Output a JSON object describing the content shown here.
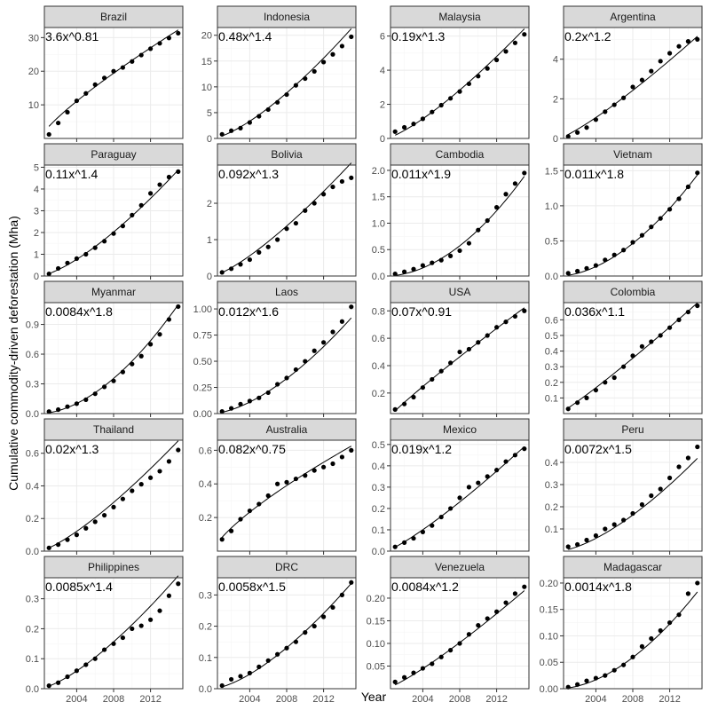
{
  "chart_data": {
    "type": "scatter",
    "layout": "facet-grid 5x4",
    "xlabel": "Year",
    "ylabel": "Cumulative commodity-driven deforestation (Mha)",
    "x_ticks": [
      2004,
      2008,
      2012
    ],
    "xlim": [
      2000.5,
      2015.5
    ],
    "x": [
      2001,
      2002,
      2003,
      2004,
      2005,
      2006,
      2007,
      2008,
      2009,
      2010,
      2011,
      2012,
      2013,
      2014,
      2015
    ],
    "grid": true,
    "panels": [
      {
        "name": "Brazil",
        "equation": "3.6x^0.81",
        "coef": 3.6,
        "exp": 0.81,
        "ylim": [
          0,
          33
        ],
        "yticks": [
          10,
          20,
          30
        ],
        "values": [
          1.2,
          4.6,
          7.8,
          11.2,
          13.4,
          16.0,
          18.0,
          20.0,
          21.1,
          22.9,
          24.8,
          26.7,
          28.3,
          29.9,
          31.3
        ]
      },
      {
        "name": "Indonesia",
        "equation": "0.48x^1.4",
        "coef": 0.48,
        "exp": 1.4,
        "ylim": [
          0,
          21.5
        ],
        "yticks": [
          0,
          5,
          10,
          15,
          20
        ],
        "values": [
          0.8,
          1.5,
          2.0,
          3.1,
          4.3,
          5.6,
          7.0,
          8.5,
          10.3,
          11.6,
          13.0,
          14.8,
          16.3,
          17.9,
          19.7
        ]
      },
      {
        "name": "Malaysia",
        "equation": "0.19x^1.3",
        "coef": 0.19,
        "exp": 1.3,
        "ylim": [
          0,
          6.5
        ],
        "yticks": [
          0,
          2,
          4,
          6
        ],
        "values": [
          0.4,
          0.65,
          0.85,
          1.15,
          1.55,
          1.95,
          2.35,
          2.75,
          3.2,
          3.65,
          4.1,
          4.6,
          5.1,
          5.6,
          6.1
        ]
      },
      {
        "name": "Argentina",
        "equation": "0.2x^1.2",
        "coef": 0.2,
        "exp": 1.2,
        "ylim": [
          0,
          5.6
        ],
        "yticks": [
          0,
          2,
          4
        ],
        "values": [
          0.1,
          0.3,
          0.55,
          0.95,
          1.35,
          1.7,
          2.05,
          2.6,
          2.95,
          3.4,
          3.9,
          4.3,
          4.65,
          4.9,
          5.0
        ]
      },
      {
        "name": "Paraguay",
        "equation": "0.11x^1.4",
        "coef": 0.11,
        "exp": 1.4,
        "ylim": [
          0,
          5.1
        ],
        "yticks": [
          0,
          1,
          2,
          3,
          4,
          5
        ],
        "values": [
          0.1,
          0.35,
          0.6,
          0.8,
          1.0,
          1.3,
          1.6,
          1.95,
          2.3,
          2.8,
          3.25,
          3.8,
          4.2,
          4.55,
          4.8
        ]
      },
      {
        "name": "Bolivia",
        "equation": "0.092x^1.3",
        "coef": 0.092,
        "exp": 1.3,
        "ylim": [
          0,
          3.05
        ],
        "yticks": [
          0,
          1,
          2
        ],
        "values": [
          0.1,
          0.2,
          0.32,
          0.45,
          0.65,
          0.8,
          1.0,
          1.3,
          1.45,
          1.8,
          2.0,
          2.25,
          2.45,
          2.6,
          2.7
        ]
      },
      {
        "name": "Cambodia",
        "equation": "0.011x^1.9",
        "coef": 0.011,
        "exp": 1.9,
        "ylim": [
          0,
          2.1
        ],
        "yticks": [
          0.0,
          0.5,
          1.0,
          1.5,
          2.0
        ],
        "values": [
          0.04,
          0.08,
          0.13,
          0.2,
          0.25,
          0.3,
          0.38,
          0.48,
          0.62,
          0.87,
          1.05,
          1.3,
          1.55,
          1.75,
          1.95
        ]
      },
      {
        "name": "Vietnam",
        "equation": "0.011x^1.8",
        "coef": 0.011,
        "exp": 1.8,
        "ylim": [
          0,
          1.58
        ],
        "yticks": [
          0.0,
          0.5,
          1.0,
          1.5
        ],
        "values": [
          0.04,
          0.07,
          0.11,
          0.15,
          0.23,
          0.3,
          0.37,
          0.48,
          0.58,
          0.7,
          0.82,
          0.95,
          1.1,
          1.27,
          1.47
        ]
      },
      {
        "name": "Myanmar",
        "equation": "0.0084x^1.8",
        "coef": 0.0084,
        "exp": 1.8,
        "ylim": [
          0,
          1.12
        ],
        "yticks": [
          0.0,
          0.3,
          0.6,
          0.9
        ],
        "values": [
          0.02,
          0.04,
          0.07,
          0.1,
          0.14,
          0.2,
          0.27,
          0.33,
          0.42,
          0.5,
          0.58,
          0.7,
          0.8,
          0.95,
          1.08
        ]
      },
      {
        "name": "Laos",
        "equation": "0.012x^1.6",
        "coef": 0.012,
        "exp": 1.6,
        "ylim": [
          0,
          1.06
        ],
        "yticks": [
          0.0,
          0.25,
          0.5,
          0.75,
          1.0
        ],
        "values": [
          0.02,
          0.05,
          0.09,
          0.12,
          0.15,
          0.2,
          0.28,
          0.34,
          0.42,
          0.5,
          0.6,
          0.68,
          0.78,
          0.88,
          1.02
        ]
      },
      {
        "name": "USA",
        "equation": "0.07x^0.91",
        "coef": 0.07,
        "exp": 0.91,
        "ylim": [
          0.05,
          0.86
        ],
        "yticks": [
          0.2,
          0.4,
          0.6,
          0.8
        ],
        "values": [
          0.08,
          0.12,
          0.17,
          0.24,
          0.3,
          0.36,
          0.42,
          0.5,
          0.52,
          0.57,
          0.62,
          0.68,
          0.72,
          0.76,
          0.8
        ]
      },
      {
        "name": "Colombia",
        "equation": "0.036x^1.1",
        "coef": 0.036,
        "exp": 1.1,
        "ylim": [
          0,
          0.71
        ],
        "yticks": [
          0.1,
          0.2,
          0.3,
          0.4,
          0.5,
          0.6
        ],
        "values": [
          0.03,
          0.07,
          0.1,
          0.15,
          0.2,
          0.23,
          0.3,
          0.37,
          0.43,
          0.46,
          0.5,
          0.55,
          0.6,
          0.65,
          0.69
        ]
      },
      {
        "name": "Thailand",
        "equation": "0.02x^1.3",
        "coef": 0.02,
        "exp": 1.3,
        "ylim": [
          0,
          0.68
        ],
        "yticks": [
          0.0,
          0.2,
          0.4,
          0.6
        ],
        "values": [
          0.02,
          0.04,
          0.07,
          0.1,
          0.14,
          0.18,
          0.22,
          0.27,
          0.32,
          0.37,
          0.41,
          0.45,
          0.49,
          0.55,
          0.62
        ]
      },
      {
        "name": "Australia",
        "equation": "0.082x^0.75",
        "coef": 0.082,
        "exp": 0.75,
        "ylim": [
          0,
          0.66
        ],
        "yticks": [
          0.2,
          0.4,
          0.6
        ],
        "values": [
          0.07,
          0.12,
          0.19,
          0.24,
          0.28,
          0.33,
          0.4,
          0.41,
          0.43,
          0.45,
          0.48,
          0.5,
          0.52,
          0.56,
          0.6
        ]
      },
      {
        "name": "Mexico",
        "equation": "0.019x^1.2",
        "coef": 0.019,
        "exp": 1.2,
        "ylim": [
          0,
          0.52
        ],
        "yticks": [
          0.0,
          0.1,
          0.2,
          0.3,
          0.4,
          0.5
        ],
        "values": [
          0.02,
          0.04,
          0.06,
          0.09,
          0.12,
          0.16,
          0.2,
          0.25,
          0.3,
          0.32,
          0.35,
          0.38,
          0.42,
          0.45,
          0.48
        ]
      },
      {
        "name": "Peru",
        "equation": "0.0072x^1.5",
        "coef": 0.0072,
        "exp": 1.5,
        "ylim": [
          0,
          0.5
        ],
        "yticks": [
          0.1,
          0.2,
          0.3,
          0.4
        ],
        "values": [
          0.02,
          0.03,
          0.05,
          0.07,
          0.1,
          0.12,
          0.14,
          0.17,
          0.21,
          0.25,
          0.28,
          0.33,
          0.38,
          0.42,
          0.47
        ]
      },
      {
        "name": "Philippines",
        "equation": "0.0085x^1.4",
        "coef": 0.0085,
        "exp": 1.4,
        "ylim": [
          0,
          0.37
        ],
        "yticks": [
          0.0,
          0.1,
          0.2,
          0.3
        ],
        "values": [
          0.01,
          0.02,
          0.04,
          0.06,
          0.08,
          0.1,
          0.13,
          0.15,
          0.17,
          0.2,
          0.21,
          0.23,
          0.26,
          0.31,
          0.35
        ]
      },
      {
        "name": "DRC",
        "equation": "0.0058x^1.5",
        "coef": 0.0058,
        "exp": 1.5,
        "ylim": [
          0,
          0.355
        ],
        "yticks": [
          0.0,
          0.1,
          0.2,
          0.3
        ],
        "values": [
          0.01,
          0.03,
          0.04,
          0.05,
          0.07,
          0.09,
          0.11,
          0.13,
          0.15,
          0.18,
          0.2,
          0.23,
          0.26,
          0.3,
          0.34
        ]
      },
      {
        "name": "Venezuela",
        "equation": "0.0084x^1.2",
        "coef": 0.0084,
        "exp": 1.2,
        "ylim": [
          0,
          0.245
        ],
        "yticks": [
          0.05,
          0.1,
          0.15,
          0.2
        ],
        "values": [
          0.015,
          0.025,
          0.035,
          0.045,
          0.055,
          0.07,
          0.085,
          0.1,
          0.12,
          0.14,
          0.155,
          0.17,
          0.19,
          0.21,
          0.225
        ]
      },
      {
        "name": "Madagascar",
        "equation": "0.0014x^1.8",
        "coef": 0.0014,
        "exp": 1.8,
        "ylim": [
          0,
          0.21
        ],
        "yticks": [
          0.0,
          0.05,
          0.1,
          0.15,
          0.2
        ],
        "values": [
          0.003,
          0.008,
          0.015,
          0.02,
          0.025,
          0.035,
          0.045,
          0.06,
          0.08,
          0.095,
          0.11,
          0.125,
          0.14,
          0.18,
          0.2
        ]
      }
    ]
  }
}
